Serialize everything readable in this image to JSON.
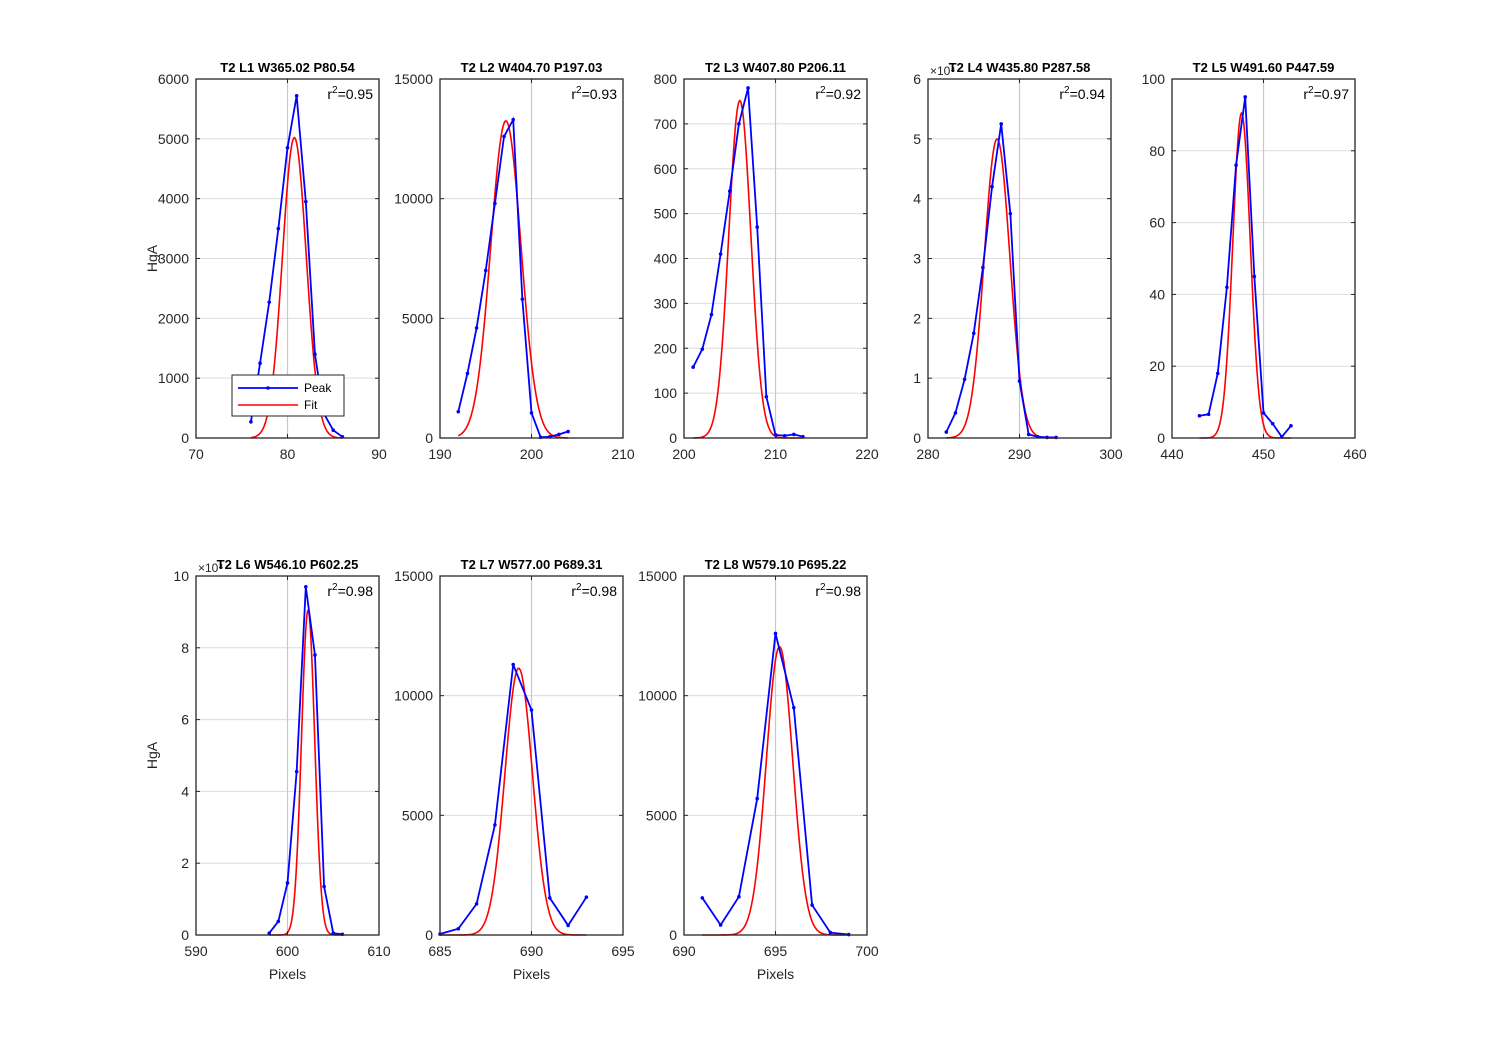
{
  "figure": {
    "x_axis_label": "Pixels",
    "y_axis_label": "HgA",
    "legend": {
      "entries": [
        "Peak",
        "Fit"
      ],
      "location": "bottom-left of first panel"
    },
    "colors": {
      "peak": "#0000ff",
      "fit": "#ff0000",
      "grid": "#dcdcdc",
      "ref_line": "#c8c8c8",
      "axes": "#262626"
    }
  },
  "chart_data": [
    {
      "type": "line",
      "title": "T2 L1 W365.02 P80.54",
      "r2_label": "r",
      "r2_exp": "2",
      "r2_value": "=0.95",
      "xlim": [
        70,
        90
      ],
      "xticks": [
        70,
        80,
        90
      ],
      "ylim": [
        0,
        6000
      ],
      "yticks": [
        0,
        1000,
        2000,
        3000,
        4000,
        5000,
        6000
      ],
      "multiplier": "",
      "ref_x": 80,
      "xlabel": "",
      "ylabel": "HgA",
      "legend": true,
      "series": [
        {
          "name": "Peak",
          "x": [
            76,
            77,
            78,
            79,
            80,
            81,
            82,
            83,
            84,
            85,
            86
          ],
          "y": [
            270,
            1250,
            2270,
            3500,
            4850,
            5720,
            3950,
            1400,
            400,
            130,
            20
          ]
        },
        {
          "name": "Fit",
          "mu": 80.75,
          "sigma": 1.3,
          "amp": 5020,
          "xr": [
            76,
            86
          ]
        }
      ]
    },
    {
      "type": "line",
      "title": "T2 L2 W404.70 P197.03",
      "r2_label": "r",
      "r2_exp": "2",
      "r2_value": "=0.93",
      "xlim": [
        190,
        210
      ],
      "xticks": [
        190,
        200,
        210
      ],
      "ylim": [
        0,
        15000
      ],
      "yticks": [
        0,
        5000,
        10000,
        15000
      ],
      "multiplier": "",
      "ref_x": 200,
      "xlabel": "",
      "ylabel": "",
      "legend": false,
      "series": [
        {
          "name": "Peak",
          "x": [
            192,
            193,
            194,
            195,
            196,
            197,
            198,
            199,
            200,
            201,
            202,
            203,
            204
          ],
          "y": [
            1100,
            2700,
            4600,
            7000,
            9800,
            12600,
            13300,
            5800,
            1050,
            30,
            50,
            150,
            270
          ]
        },
        {
          "name": "Fit",
          "mu": 197.2,
          "sigma": 1.65,
          "amp": 13250,
          "xr": [
            192,
            204
          ]
        }
      ]
    },
    {
      "type": "line",
      "title": "T2 L3 W407.80 P206.11",
      "r2_label": "r",
      "r2_exp": "2",
      "r2_value": "=0.92",
      "xlim": [
        200,
        220
      ],
      "xticks": [
        200,
        210,
        220
      ],
      "ylim": [
        0,
        800
      ],
      "yticks": [
        0,
        100,
        200,
        300,
        400,
        500,
        600,
        700,
        800
      ],
      "multiplier": "",
      "ref_x": 210,
      "xlabel": "",
      "ylabel": "",
      "legend": false,
      "series": [
        {
          "name": "Peak",
          "x": [
            201,
            202,
            203,
            204,
            205,
            206,
            207,
            208,
            209,
            210,
            211,
            212,
            213
          ],
          "y": [
            158,
            198,
            275,
            410,
            550,
            700,
            780,
            470,
            92,
            7,
            5,
            8,
            3
          ]
        },
        {
          "name": "Fit",
          "mu": 206.1,
          "sigma": 1.2,
          "amp": 752,
          "xr": [
            201,
            213
          ]
        }
      ]
    },
    {
      "type": "line",
      "title": "T2 L4 W435.80 P287.58",
      "r2_label": "r",
      "r2_exp": "2",
      "r2_value": "=0.94",
      "xlim": [
        280,
        300
      ],
      "xticks": [
        280,
        290,
        300
      ],
      "ylim": [
        0,
        6
      ],
      "yticks": [
        0,
        1,
        2,
        3,
        4,
        5,
        6
      ],
      "multiplier": "×10⁴",
      "ref_x": 290,
      "xlabel": "",
      "ylabel": "",
      "legend": false,
      "series": [
        {
          "name": "Peak",
          "x": [
            282,
            283,
            284,
            285,
            286,
            287,
            288,
            289,
            290,
            291,
            292,
            293,
            294
          ],
          "y": [
            0.1,
            0.42,
            0.98,
            1.75,
            2.85,
            4.2,
            5.25,
            3.75,
            0.95,
            0.06,
            0.02,
            0.01,
            0.01
          ]
        },
        {
          "name": "Fit",
          "mu": 287.55,
          "sigma": 1.4,
          "amp": 5.0,
          "xr": [
            282,
            294
          ]
        }
      ]
    },
    {
      "type": "line",
      "title": "T2 L5 W491.60 P447.59",
      "r2_label": "r",
      "r2_exp": "2",
      "r2_value": "=0.97",
      "xlim": [
        440,
        460
      ],
      "xticks": [
        440,
        450,
        460
      ],
      "ylim": [
        0,
        100
      ],
      "yticks": [
        0,
        20,
        40,
        60,
        80,
        100
      ],
      "multiplier": "",
      "ref_x": 450,
      "xlabel": "",
      "ylabel": "",
      "legend": false,
      "series": [
        {
          "name": "Peak",
          "x": [
            443,
            444,
            445,
            446,
            447,
            448,
            449,
            450,
            451,
            452,
            453
          ],
          "y": [
            6.2,
            6.6,
            18,
            42,
            76,
            95,
            45,
            7,
            4,
            0.3,
            3.4
          ]
        },
        {
          "name": "Fit",
          "mu": 447.6,
          "sigma": 0.95,
          "amp": 90.5,
          "xr": [
            443,
            453
          ]
        }
      ]
    },
    {
      "type": "line",
      "title": "T2 L6 W546.10 P602.25",
      "r2_label": "r",
      "r2_exp": "2",
      "r2_value": "=0.98",
      "xlim": [
        590,
        610
      ],
      "xticks": [
        590,
        600,
        610
      ],
      "ylim": [
        0,
        10
      ],
      "yticks": [
        0,
        2,
        4,
        6,
        8,
        10
      ],
      "multiplier": "×10⁴",
      "ref_x": 600,
      "xlabel": "Pixels",
      "ylabel": "HgA",
      "legend": false,
      "series": [
        {
          "name": "Peak",
          "x": [
            598,
            599,
            600,
            601,
            602,
            603,
            604,
            605,
            606
          ],
          "y": [
            0.05,
            0.38,
            1.45,
            4.55,
            9.7,
            7.8,
            1.35,
            0.05,
            0.02
          ]
        },
        {
          "name": "Fit",
          "mu": 602.25,
          "sigma": 0.72,
          "amp": 9.05,
          "xr": [
            598,
            606
          ]
        }
      ]
    },
    {
      "type": "line",
      "title": "T2 L7 W577.00 P689.31",
      "r2_label": "r",
      "r2_exp": "2",
      "r2_value": "=0.98",
      "xlim": [
        685,
        695
      ],
      "xticks": [
        685,
        690,
        695
      ],
      "ylim": [
        0,
        15000
      ],
      "yticks": [
        0,
        5000,
        10000,
        15000
      ],
      "multiplier": "",
      "ref_x": 690,
      "xlabel": "Pixels",
      "ylabel": "",
      "legend": false,
      "series": [
        {
          "name": "Peak",
          "x": [
            685,
            686,
            687,
            688,
            689,
            690,
            691,
            692,
            693
          ],
          "y": [
            40,
            260,
            1300,
            4600,
            11300,
            9400,
            1550,
            400,
            1580
          ]
        },
        {
          "name": "Fit",
          "mu": 689.3,
          "sigma": 0.75,
          "amp": 11150,
          "xr": [
            685,
            693
          ]
        }
      ]
    },
    {
      "type": "line",
      "title": "T2 L8 W579.10 P695.22",
      "r2_label": "r",
      "r2_exp": "2",
      "r2_value": "=0.98",
      "xlim": [
        690,
        700
      ],
      "xticks": [
        690,
        695,
        700
      ],
      "ylim": [
        0,
        15000
      ],
      "yticks": [
        0,
        5000,
        10000,
        15000
      ],
      "multiplier": "",
      "ref_x": 695,
      "xlabel": "Pixels",
      "ylabel": "",
      "legend": false,
      "series": [
        {
          "name": "Peak",
          "x": [
            691,
            692,
            693,
            694,
            695,
            696,
            697,
            698,
            699
          ],
          "y": [
            1550,
            420,
            1600,
            5700,
            12600,
            9500,
            1250,
            100,
            20
          ]
        },
        {
          "name": "Fit",
          "mu": 695.22,
          "sigma": 0.72,
          "amp": 12050,
          "xr": [
            691,
            699
          ]
        }
      ]
    }
  ]
}
